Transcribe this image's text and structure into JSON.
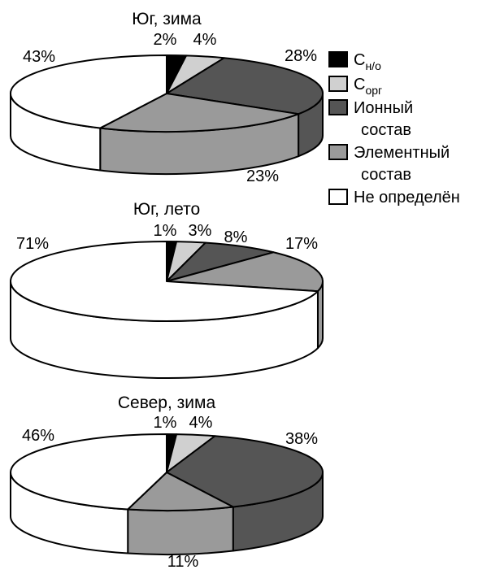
{
  "legend": [
    {
      "main": "C",
      "sub": "н/о",
      "color": "#000000"
    },
    {
      "main": "C",
      "sub": "орг",
      "color": "#d0d0d0"
    },
    {
      "main": "Ионный",
      "line2": "состав",
      "color": "#555555"
    },
    {
      "main": "Элементный",
      "line2": "состав",
      "color": "#9a9a9a"
    },
    {
      "main": "Не определён",
      "color": "#ffffff"
    }
  ],
  "chart_data": [
    {
      "type": "pie",
      "title": "Юг, зима",
      "categories": [
        "C н/о",
        "C орг",
        "Ионный состав",
        "Элементный состав",
        "Не определён"
      ],
      "values": [
        2,
        4,
        28,
        23,
        43
      ],
      "labels": [
        "2%",
        "4%",
        "28%",
        "23%",
        "43%"
      ]
    },
    {
      "type": "pie",
      "title": "Юг, лето",
      "categories": [
        "C н/о",
        "C орг",
        "Ионный состав",
        "Элементный состав",
        "Не определён"
      ],
      "values": [
        1,
        3,
        8,
        17,
        71
      ],
      "labels": [
        "1%",
        "3%",
        "8%",
        "17%",
        "71%"
      ]
    },
    {
      "type": "pie",
      "title": "Север, зима",
      "categories": [
        "C н/о",
        "C орг",
        "Ионный состав",
        "Элементный состав",
        "Не определён"
      ],
      "values": [
        1,
        4,
        38,
        11,
        46
      ],
      "labels": [
        "1%",
        "4%",
        "38%",
        "11%",
        "46%"
      ]
    }
  ]
}
